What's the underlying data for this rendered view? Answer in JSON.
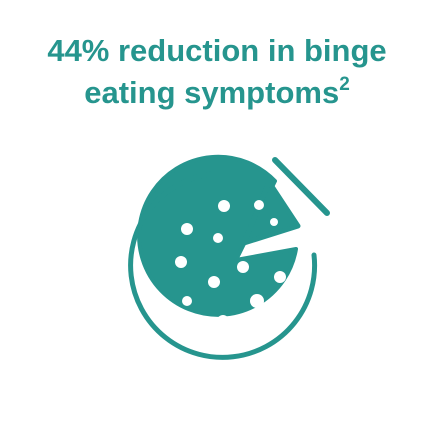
{
  "headline": {
    "line1": "44% reduction in binge",
    "line2_text": "eating symptoms",
    "line2_superscript": "2"
  },
  "icon": {
    "name": "pizza-icon",
    "color": "#26958e"
  },
  "colors": {
    "accent": "#26958e",
    "background": "#ffffff"
  }
}
